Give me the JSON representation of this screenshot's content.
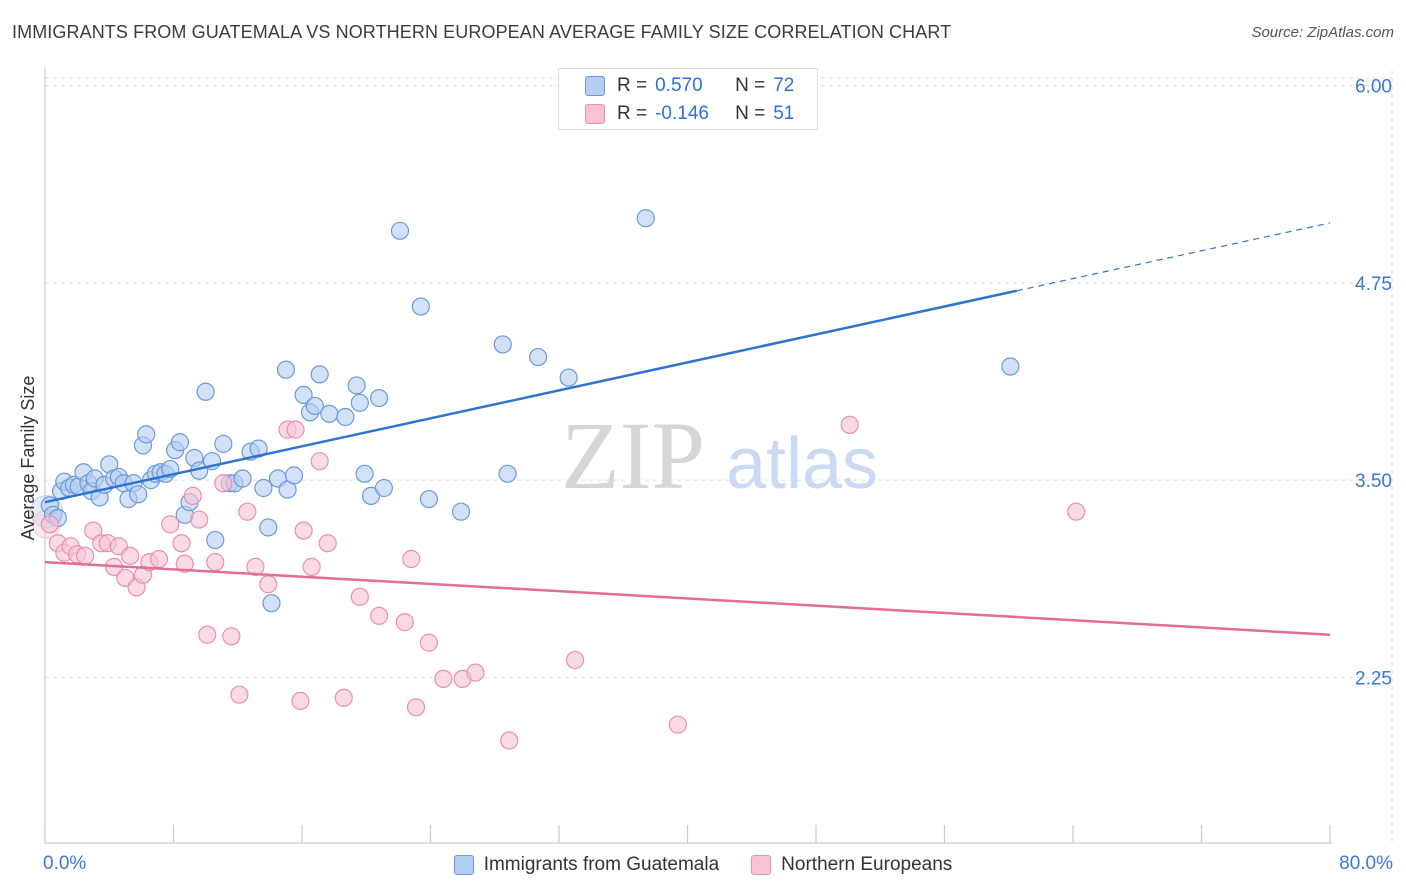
{
  "title": "IMMIGRANTS FROM GUATEMALA VS NORTHERN EUROPEAN AVERAGE FAMILY SIZE CORRELATION CHART",
  "source": "Source: ZipAtlas.com",
  "watermark": {
    "zip": "ZIP",
    "atlas": "atlas"
  },
  "stats": [
    {
      "r_label": "R =",
      "r_value": "0.570",
      "n_label": "N =",
      "n_value": "72",
      "color": "#5b8ee0"
    },
    {
      "r_label": "R =",
      "r_value": "-0.146",
      "n_label": "N =",
      "n_value": "51",
      "color": "#e8769b"
    }
  ],
  "colors": {
    "blue_fill": "#b5cdf2",
    "blue_stroke": "#6a99dd",
    "blue_line": "#2f72d0",
    "pink_fill": "#f7c3d4",
    "pink_stroke": "#ea8eae",
    "pink_line": "#e46c96",
    "grid": "#dddddd",
    "axis_label": "#3b78d4"
  },
  "chart_data": {
    "type": "scatter",
    "title": "IMMIGRANTS FROM GUATEMALA VS NORTHERN EUROPEAN AVERAGE FAMILY SIZE CORRELATION CHART",
    "xlabel": "",
    "ylabel": "Average Family Size",
    "xlim": [
      0,
      80
    ],
    "ylim": [
      1.2,
      6.15
    ],
    "x_tick_labels": [
      "0.0%",
      "80.0%"
    ],
    "y_ticks": [
      2.25,
      3.5,
      4.75,
      6.0
    ],
    "y_tick_labels": [
      "2.25",
      "3.50",
      "4.75",
      "6.00"
    ],
    "series": [
      {
        "name": "Immigrants from Guatemala",
        "color": "#b5cdf2",
        "points": [
          [
            0.3,
            3.34
          ],
          [
            0.5,
            3.28
          ],
          [
            0.8,
            3.26
          ],
          [
            1,
            3.43
          ],
          [
            1.2,
            3.49
          ],
          [
            1.5,
            3.45
          ],
          [
            1.8,
            3.47
          ],
          [
            2.1,
            3.46
          ],
          [
            2.4,
            3.55
          ],
          [
            2.7,
            3.48
          ],
          [
            2.9,
            3.43
          ],
          [
            3.1,
            3.51
          ],
          [
            3.4,
            3.39
          ],
          [
            3.7,
            3.47
          ],
          [
            4,
            3.6
          ],
          [
            4.3,
            3.51
          ],
          [
            4.6,
            3.52
          ],
          [
            4.9,
            3.48
          ],
          [
            5.2,
            3.38
          ],
          [
            5.5,
            3.48
          ],
          [
            5.8,
            3.41
          ],
          [
            6.1,
            3.72
          ],
          [
            6.3,
            3.79
          ],
          [
            6.6,
            3.5
          ],
          [
            6.9,
            3.54
          ],
          [
            7.2,
            3.55
          ],
          [
            7.5,
            3.54
          ],
          [
            7.8,
            3.57
          ],
          [
            8.1,
            3.69
          ],
          [
            8.4,
            3.74
          ],
          [
            8.7,
            3.28
          ],
          [
            9,
            3.36
          ],
          [
            9.3,
            3.64
          ],
          [
            9.6,
            3.56
          ],
          [
            10,
            4.06
          ],
          [
            10.4,
            3.62
          ],
          [
            10.6,
            3.12
          ],
          [
            11.1,
            3.73
          ],
          [
            11.5,
            3.48
          ],
          [
            11.8,
            3.48
          ],
          [
            12.3,
            3.51
          ],
          [
            12.8,
            3.68
          ],
          [
            13.3,
            3.7
          ],
          [
            13.6,
            3.45
          ],
          [
            13.9,
            3.2
          ],
          [
            14.1,
            2.72
          ],
          [
            14.5,
            3.51
          ],
          [
            15,
            4.2
          ],
          [
            15.1,
            3.44
          ],
          [
            15.5,
            3.53
          ],
          [
            16.1,
            4.04
          ],
          [
            16.5,
            3.93
          ],
          [
            16.8,
            3.97
          ],
          [
            17.1,
            4.17
          ],
          [
            17.7,
            3.92
          ],
          [
            18.7,
            3.9
          ],
          [
            19.4,
            4.1
          ],
          [
            19.6,
            3.99
          ],
          [
            19.9,
            3.54
          ],
          [
            20.3,
            3.4
          ],
          [
            20.8,
            4.02
          ],
          [
            21.1,
            3.45
          ],
          [
            22.1,
            5.08
          ],
          [
            23.4,
            4.6
          ],
          [
            23.9,
            3.38
          ],
          [
            25.9,
            3.3
          ],
          [
            28.5,
            4.36
          ],
          [
            28.8,
            3.54
          ],
          [
            30.7,
            4.28
          ],
          [
            32.6,
            4.15
          ],
          [
            37.4,
            5.16
          ],
          [
            60.1,
            4.22
          ]
        ]
      },
      {
        "name": "Northern Europeans",
        "color": "#f7c3d4",
        "points": [
          [
            0.3,
            3.22
          ],
          [
            0.8,
            3.1
          ],
          [
            1.2,
            3.04
          ],
          [
            1.6,
            3.08
          ],
          [
            2,
            3.03
          ],
          [
            2.5,
            3.02
          ],
          [
            3,
            3.18
          ],
          [
            3.5,
            3.1
          ],
          [
            3.9,
            3.1
          ],
          [
            4.3,
            2.95
          ],
          [
            4.6,
            3.08
          ],
          [
            5,
            2.88
          ],
          [
            5.3,
            3.02
          ],
          [
            5.7,
            2.82
          ],
          [
            6.1,
            2.9
          ],
          [
            6.5,
            2.98
          ],
          [
            7.1,
            3
          ],
          [
            7.8,
            3.22
          ],
          [
            8.5,
            3.1
          ],
          [
            8.7,
            2.97
          ],
          [
            9.2,
            3.4
          ],
          [
            9.6,
            3.25
          ],
          [
            10.1,
            2.52
          ],
          [
            10.6,
            2.98
          ],
          [
            11.1,
            3.48
          ],
          [
            11.6,
            2.51
          ],
          [
            12.1,
            2.14
          ],
          [
            12.6,
            3.3
          ],
          [
            13.1,
            2.95
          ],
          [
            13.9,
            2.84
          ],
          [
            15.1,
            3.82
          ],
          [
            15.6,
            3.82
          ],
          [
            15.9,
            2.1
          ],
          [
            16.1,
            3.18
          ],
          [
            16.6,
            2.95
          ],
          [
            17.1,
            3.62
          ],
          [
            17.6,
            3.1
          ],
          [
            18.6,
            2.12
          ],
          [
            19.6,
            2.76
          ],
          [
            20.8,
            2.64
          ],
          [
            22.4,
            2.6
          ],
          [
            22.8,
            3
          ],
          [
            23.1,
            2.06
          ],
          [
            23.9,
            2.47
          ],
          [
            24.8,
            2.24
          ],
          [
            26,
            2.24
          ],
          [
            26.8,
            2.28
          ],
          [
            28.9,
            1.85
          ],
          [
            33,
            2.36
          ],
          [
            39.4,
            1.95
          ],
          [
            50.1,
            3.85
          ],
          [
            64.2,
            3.3
          ]
        ]
      }
    ],
    "trendlines": [
      {
        "series": "Immigrants from Guatemala",
        "x": [
          0,
          60.5
        ],
        "y": [
          3.36,
          4.7
        ],
        "dashed_extension": {
          "x": [
            60.5,
            80
          ],
          "y": [
            4.7,
            5.13
          ]
        }
      },
      {
        "series": "Northern Europeans",
        "x": [
          0,
          80
        ],
        "y": [
          2.98,
          2.52
        ]
      }
    ],
    "legend": [
      "Immigrants from Guatemala",
      "Northern Europeans"
    ],
    "grid": true
  }
}
